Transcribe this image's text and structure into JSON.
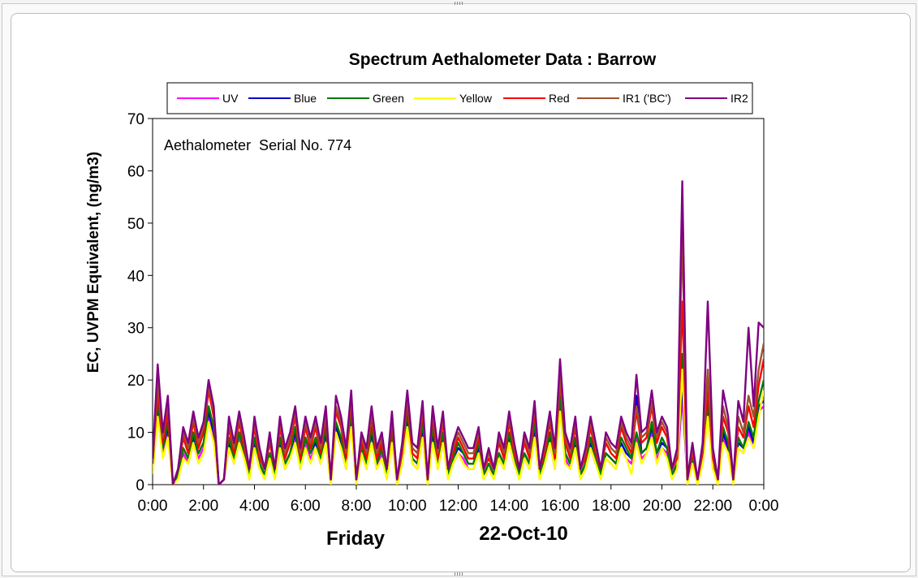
{
  "chart_data": {
    "type": "line",
    "title": "Spectrum Aethalometer Data  :  Barrow",
    "annotation": "Aethalometer  Serial No. 774",
    "ylabel": "EC, UVPM Equivalent, (ng/m3)",
    "xlabel_left": "Friday",
    "xlabel_right": "22-Oct-10",
    "ylim": [
      0,
      70
    ],
    "yticks": [
      "0",
      "10",
      "20",
      "30",
      "40",
      "50",
      "60",
      "70"
    ],
    "xlim": [
      0,
      24
    ],
    "xticks": [
      "0:00",
      "2:00",
      "4:00",
      "6:00",
      "8:00",
      "10:00",
      "12:00",
      "14:00",
      "16:00",
      "18:00",
      "20:00",
      "22:00",
      "0:00"
    ],
    "grid": false,
    "legend_position": "top",
    "x": [
      0,
      0.2,
      0.4,
      0.6,
      0.8,
      1,
      1.2,
      1.4,
      1.6,
      1.8,
      2,
      2.2,
      2.4,
      2.6,
      2.8,
      3,
      3.2,
      3.4,
      3.6,
      3.8,
      4,
      4.2,
      4.4,
      4.6,
      4.8,
      5,
      5.2,
      5.4,
      5.6,
      5.8,
      6,
      6.2,
      6.4,
      6.6,
      6.8,
      7,
      7.2,
      7.4,
      7.6,
      7.8,
      8,
      8.2,
      8.4,
      8.6,
      8.8,
      9,
      9.2,
      9.4,
      9.6,
      9.8,
      10,
      10.2,
      10.4,
      10.6,
      10.8,
      11,
      11.2,
      11.4,
      11.6,
      11.8,
      12,
      12.2,
      12.4,
      12.6,
      12.8,
      13,
      13.2,
      13.4,
      13.6,
      13.8,
      14,
      14.2,
      14.4,
      14.6,
      14.8,
      15,
      15.2,
      15.4,
      15.6,
      15.8,
      16,
      16.2,
      16.4,
      16.6,
      16.8,
      17,
      17.2,
      17.4,
      17.6,
      17.8,
      18,
      18.2,
      18.4,
      18.6,
      18.8,
      19,
      19.2,
      19.4,
      19.6,
      19.8,
      20,
      20.2,
      20.4,
      20.6,
      20.8,
      21,
      21.2,
      21.4,
      21.6,
      21.8,
      22,
      22.2,
      22.4,
      22.6,
      22.8,
      23,
      23.2,
      23.4,
      23.6,
      23.8,
      24
    ],
    "series": [
      {
        "name": "UV",
        "color": "#ff00ff",
        "values": [
          2,
          14,
          6,
          10,
          0,
          2,
          6,
          4,
          8,
          5,
          7,
          13,
          9,
          0,
          1,
          7,
          4,
          9,
          5,
          2,
          7,
          3,
          2,
          5,
          2,
          7,
          3,
          5,
          9,
          3,
          8,
          5,
          7,
          4,
          9,
          1,
          10,
          7,
          3,
          12,
          1,
          6,
          3,
          9,
          3,
          6,
          2,
          8,
          1,
          4,
          12,
          4,
          3,
          10,
          1,
          9,
          3,
          8,
          2,
          4,
          6,
          5,
          3,
          3,
          6,
          2,
          3,
          2,
          5,
          3,
          8,
          4,
          2,
          5,
          3,
          10,
          2,
          4,
          8,
          3,
          15,
          5,
          3,
          7,
          2,
          3,
          7,
          4,
          2,
          5,
          4,
          3,
          7,
          5,
          4,
          9,
          5,
          6,
          10,
          5,
          7,
          6,
          2,
          3,
          17,
          1,
          4,
          1,
          4,
          14,
          3,
          1,
          9,
          6,
          1,
          7,
          6,
          10,
          7,
          14,
          15
        ]
      },
      {
        "name": "Blue",
        "color": "#0000cc",
        "values": [
          3,
          15,
          7,
          11,
          0,
          2,
          7,
          5,
          9,
          6,
          8,
          14,
          10,
          0,
          1,
          8,
          5,
          10,
          6,
          2,
          8,
          4,
          2,
          6,
          2,
          8,
          4,
          6,
          10,
          4,
          9,
          6,
          8,
          5,
          10,
          1,
          11,
          8,
          4,
          13,
          1,
          7,
          4,
          10,
          4,
          7,
          2,
          9,
          1,
          5,
          13,
          5,
          4,
          11,
          1,
          10,
          4,
          9,
          2,
          5,
          7,
          6,
          4,
          4,
          7,
          2,
          4,
          2,
          6,
          4,
          9,
          5,
          2,
          6,
          4,
          11,
          2,
          5,
          9,
          4,
          16,
          6,
          4,
          8,
          2,
          4,
          8,
          5,
          2,
          6,
          5,
          4,
          8,
          6,
          5,
          17,
          6,
          7,
          11,
          6,
          8,
          7,
          2,
          4,
          19,
          1,
          5,
          1,
          5,
          15,
          4,
          1,
          10,
          7,
          1,
          8,
          7,
          11,
          8,
          15,
          16
        ]
      },
      {
        "name": "Green",
        "color": "#007a00",
        "values": [
          3,
          16,
          7,
          12,
          0,
          2,
          7,
          5,
          10,
          6,
          8,
          15,
          11,
          0,
          1,
          9,
          5,
          10,
          6,
          2,
          9,
          4,
          2,
          6,
          2,
          9,
          4,
          6,
          11,
          4,
          9,
          6,
          9,
          5,
          11,
          1,
          12,
          9,
          4,
          14,
          1,
          7,
          4,
          11,
          4,
          7,
          2,
          10,
          1,
          5,
          14,
          5,
          4,
          12,
          1,
          11,
          4,
          10,
          2,
          5,
          8,
          6,
          4,
          4,
          8,
          2,
          4,
          2,
          6,
          4,
          10,
          5,
          2,
          6,
          4,
          12,
          2,
          5,
          10,
          4,
          17,
          6,
          4,
          9,
          2,
          4,
          9,
          5,
          2,
          6,
          5,
          4,
          9,
          7,
          5,
          10,
          6,
          7,
          12,
          6,
          9,
          7,
          2,
          4,
          25,
          1,
          5,
          1,
          5,
          16,
          4,
          1,
          11,
          8,
          1,
          9,
          7,
          12,
          9,
          16,
          20
        ]
      },
      {
        "name": "Yellow",
        "color": "#ffff00",
        "values": [
          2,
          13,
          5,
          9,
          0,
          1,
          5,
          4,
          8,
          4,
          6,
          12,
          8,
          0,
          1,
          7,
          4,
          8,
          5,
          1,
          7,
          3,
          1,
          5,
          1,
          7,
          3,
          5,
          8,
          3,
          7,
          4,
          7,
          4,
          8,
          0,
          10,
          7,
          3,
          11,
          0,
          6,
          3,
          8,
          3,
          5,
          1,
          8,
          0,
          4,
          11,
          4,
          3,
          9,
          0,
          8,
          3,
          8,
          1,
          4,
          6,
          4,
          3,
          3,
          6,
          1,
          3,
          1,
          5,
          3,
          8,
          4,
          1,
          5,
          3,
          9,
          1,
          4,
          8,
          3,
          14,
          4,
          3,
          7,
          1,
          3,
          7,
          4,
          1,
          5,
          4,
          3,
          7,
          5,
          2,
          8,
          4,
          6,
          9,
          4,
          7,
          5,
          1,
          3,
          22,
          0,
          4,
          0,
          4,
          13,
          3,
          0,
          8,
          6,
          0,
          7,
          6,
          9,
          7,
          13,
          18
        ]
      },
      {
        "name": "Red",
        "color": "#ff0000",
        "values": [
          4,
          18,
          8,
          14,
          0,
          3,
          9,
          6,
          12,
          7,
          10,
          18,
          13,
          0,
          1,
          11,
          6,
          12,
          7,
          3,
          11,
          5,
          3,
          8,
          3,
          11,
          5,
          8,
          13,
          5,
          11,
          7,
          11,
          6,
          13,
          1,
          14,
          11,
          5,
          16,
          1,
          8,
          5,
          13,
          5,
          8,
          3,
          12,
          1,
          6,
          16,
          6,
          5,
          14,
          1,
          13,
          5,
          12,
          3,
          6,
          9,
          7,
          5,
          5,
          9,
          3,
          5,
          3,
          8,
          5,
          12,
          6,
          3,
          8,
          5,
          14,
          3,
          6,
          12,
          5,
          20,
          8,
          5,
          11,
          3,
          5,
          11,
          6,
          3,
          8,
          6,
          5,
          11,
          8,
          6,
          14,
          8,
          9,
          15,
          8,
          11,
          9,
          3,
          5,
          35,
          1,
          6,
          1,
          6,
          19,
          5,
          1,
          13,
          10,
          1,
          11,
          9,
          15,
          11,
          19,
          24
        ]
      },
      {
        "name": "IR1 ('BC')",
        "color": "#a0522d",
        "values": [
          4,
          20,
          9,
          16,
          0,
          3,
          10,
          7,
          13,
          8,
          11,
          19,
          14,
          0,
          1,
          12,
          7,
          13,
          8,
          3,
          12,
          6,
          3,
          9,
          3,
          12,
          6,
          9,
          14,
          6,
          12,
          8,
          12,
          7,
          14,
          1,
          15,
          12,
          6,
          17,
          1,
          9,
          6,
          14,
          6,
          9,
          3,
          13,
          1,
          7,
          17,
          7,
          6,
          15,
          1,
          14,
          6,
          13,
          3,
          7,
          10,
          8,
          6,
          6,
          10,
          3,
          6,
          3,
          9,
          6,
          13,
          7,
          3,
          9,
          6,
          15,
          3,
          7,
          13,
          6,
          21,
          9,
          6,
          12,
          3,
          6,
          12,
          7,
          3,
          9,
          7,
          6,
          12,
          9,
          7,
          15,
          9,
          10,
          16,
          9,
          12,
          10,
          3,
          6,
          48,
          1,
          7,
          1,
          7,
          22,
          6,
          1,
          15,
          11,
          1,
          13,
          10,
          17,
          13,
          22,
          27
        ]
      },
      {
        "name": "IR2",
        "color": "#800080",
        "values": [
          5,
          23,
          10,
          17,
          0,
          3,
          11,
          8,
          14,
          9,
          12,
          20,
          15,
          0,
          1,
          13,
          8,
          14,
          9,
          3,
          13,
          7,
          3,
          10,
          3,
          13,
          7,
          10,
          15,
          7,
          13,
          9,
          13,
          8,
          15,
          1,
          17,
          13,
          7,
          18,
          1,
          10,
          7,
          15,
          7,
          10,
          3,
          14,
          1,
          8,
          18,
          8,
          7,
          16,
          1,
          15,
          7,
          14,
          3,
          8,
          11,
          9,
          7,
          7,
          11,
          3,
          7,
          3,
          10,
          7,
          14,
          8,
          3,
          10,
          7,
          16,
          3,
          8,
          14,
          7,
          24,
          10,
          7,
          13,
          3,
          7,
          13,
          8,
          3,
          10,
          8,
          7,
          13,
          10,
          8,
          21,
          10,
          11,
          18,
          10,
          13,
          11,
          3,
          7,
          58,
          1,
          8,
          1,
          8,
          35,
          7,
          1,
          18,
          13,
          1,
          16,
          12,
          30,
          15,
          31,
          30
        ]
      }
    ]
  }
}
